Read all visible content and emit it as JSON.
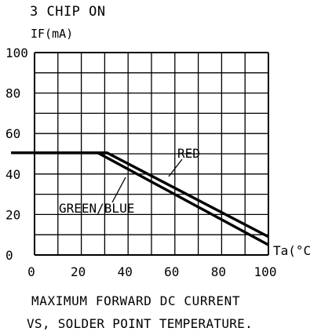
{
  "chart_data": {
    "type": "line",
    "header": "3 CHIP ON",
    "ylabel": "IF(mA)",
    "xlabel": "Ta(°C",
    "caption_line1": "MAXIMUM FORWARD DC CURRENT",
    "caption_line2": "VS, SOLDER POINT TEMPERATURE.",
    "xlim": [
      0,
      100
    ],
    "ylim": [
      0,
      100
    ],
    "x_ticks": [
      "0",
      "20",
      "40",
      "60",
      "80",
      "100"
    ],
    "y_ticks": [
      "0",
      "20",
      "40",
      "60",
      "80",
      "100"
    ],
    "grid": true,
    "series": [
      {
        "name": "RED",
        "points": [
          [
            -10,
            50.5
          ],
          [
            31,
            50.5
          ],
          [
            100,
            9
          ]
        ]
      },
      {
        "name": "GREEN/BLUE",
        "points": [
          [
            -10,
            50.5
          ],
          [
            27,
            50.5
          ],
          [
            100,
            5
          ]
        ]
      }
    ]
  }
}
